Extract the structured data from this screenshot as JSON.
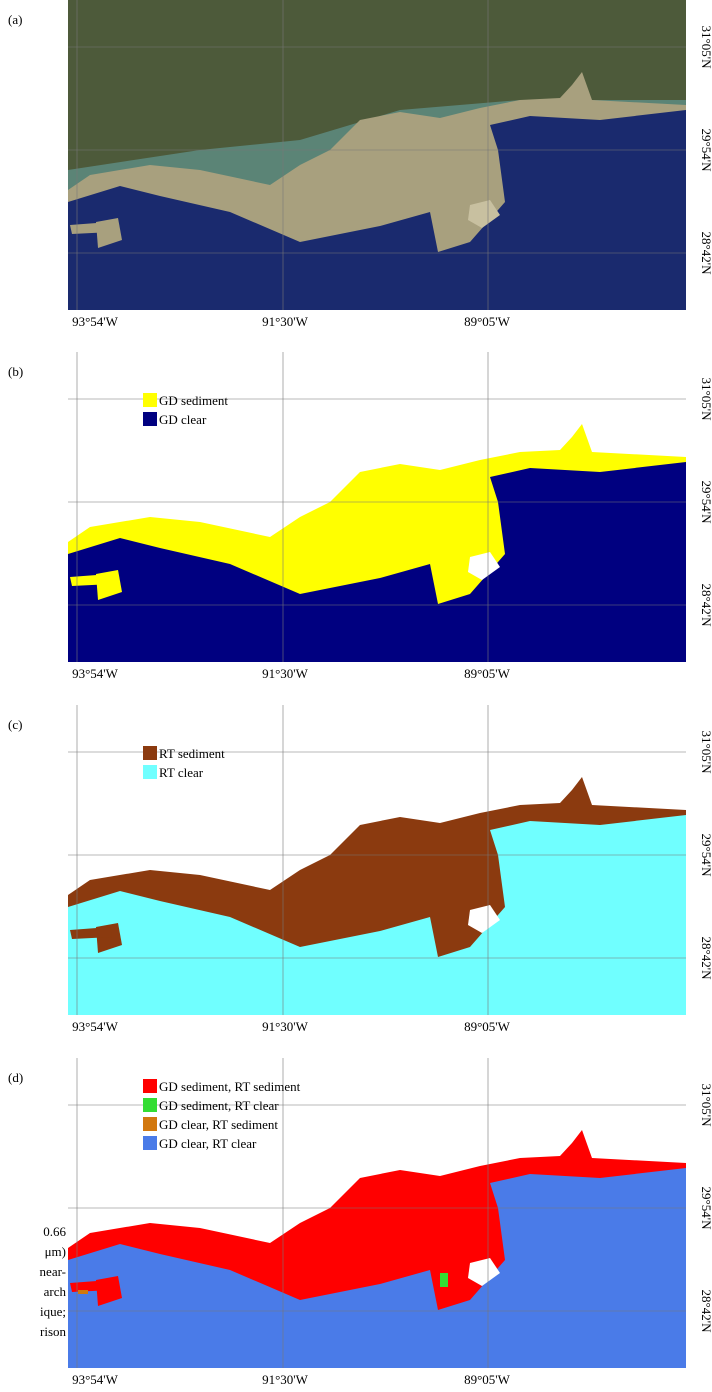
{
  "panels": [
    {
      "label": "(a)",
      "legend": []
    },
    {
      "label": "(b)",
      "legend": [
        {
          "label": "GD sediment",
          "color": "#ffff00"
        },
        {
          "label": "GD clear",
          "color": "#000080"
        }
      ]
    },
    {
      "label": "(c)",
      "legend": [
        {
          "label": "RT sediment",
          "color": "#8b3a0f"
        },
        {
          "label": "RT clear",
          "color": "#70ffff"
        }
      ]
    },
    {
      "label": "(d)",
      "legend": [
        {
          "label": "GD sediment, RT sediment",
          "color": "#ff0000"
        },
        {
          "label": "GD sediment, RT clear",
          "color": "#33dd33"
        },
        {
          "label": "GD clear, RT sediment",
          "color": "#d2780f"
        },
        {
          "label": "GD clear, RT clear",
          "color": "#4a7be8"
        }
      ]
    }
  ],
  "lon_labels": [
    "93°54'W",
    "91°30'W",
    "89°05'W"
  ],
  "lat_labels": [
    "31°05'N",
    "29°54'N",
    "28°42'N"
  ],
  "caption_fragments": [
    "0.66",
    "μm)",
    "near-",
    "arch",
    "ique;",
    "rison"
  ]
}
